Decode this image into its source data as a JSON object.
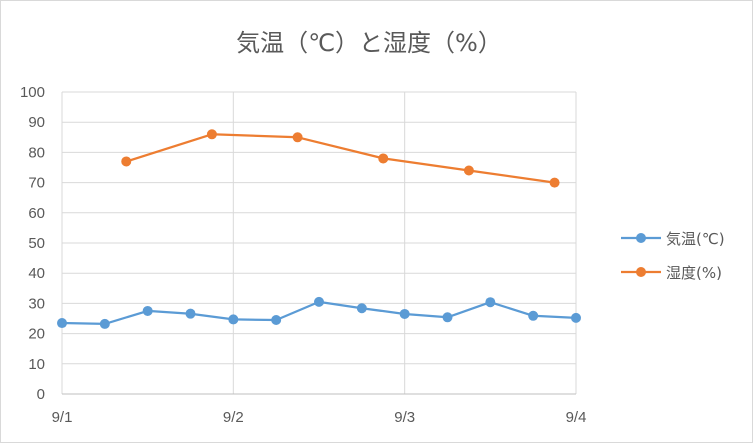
{
  "chart_data": {
    "type": "line",
    "title": "気温（℃）と湿度（%）",
    "xlabel": "",
    "ylabel": "",
    "ylim": [
      0,
      100
    ],
    "y_ticks": [
      0,
      10,
      20,
      30,
      40,
      50,
      60,
      70,
      80,
      90,
      100
    ],
    "xlim": [
      0,
      3
    ],
    "x_ticks": [
      {
        "value": 0,
        "label": "9/1"
      },
      {
        "value": 1,
        "label": "9/2"
      },
      {
        "value": 2,
        "label": "9/3"
      },
      {
        "value": 3,
        "label": "9/4"
      }
    ],
    "grid": true,
    "legend_position": "right",
    "series": [
      {
        "name": "気温(℃)",
        "color": "#5b9bd5",
        "x": [
          0,
          0.25,
          0.5,
          0.75,
          1.0,
          1.25,
          1.5,
          1.75,
          2.0,
          2.25,
          2.5,
          2.75,
          3.0
        ],
        "y": [
          23.5,
          23.2,
          27.5,
          26.6,
          24.7,
          24.5,
          30.5,
          28.4,
          26.5,
          25.4,
          30.4,
          25.9,
          25.2
        ]
      },
      {
        "name": "湿度(%)",
        "color": "#ed7d31",
        "x": [
          0.375,
          0.875,
          1.375,
          1.875,
          2.375,
          2.875
        ],
        "y": [
          77,
          86,
          85,
          78,
          74,
          70
        ]
      }
    ]
  }
}
